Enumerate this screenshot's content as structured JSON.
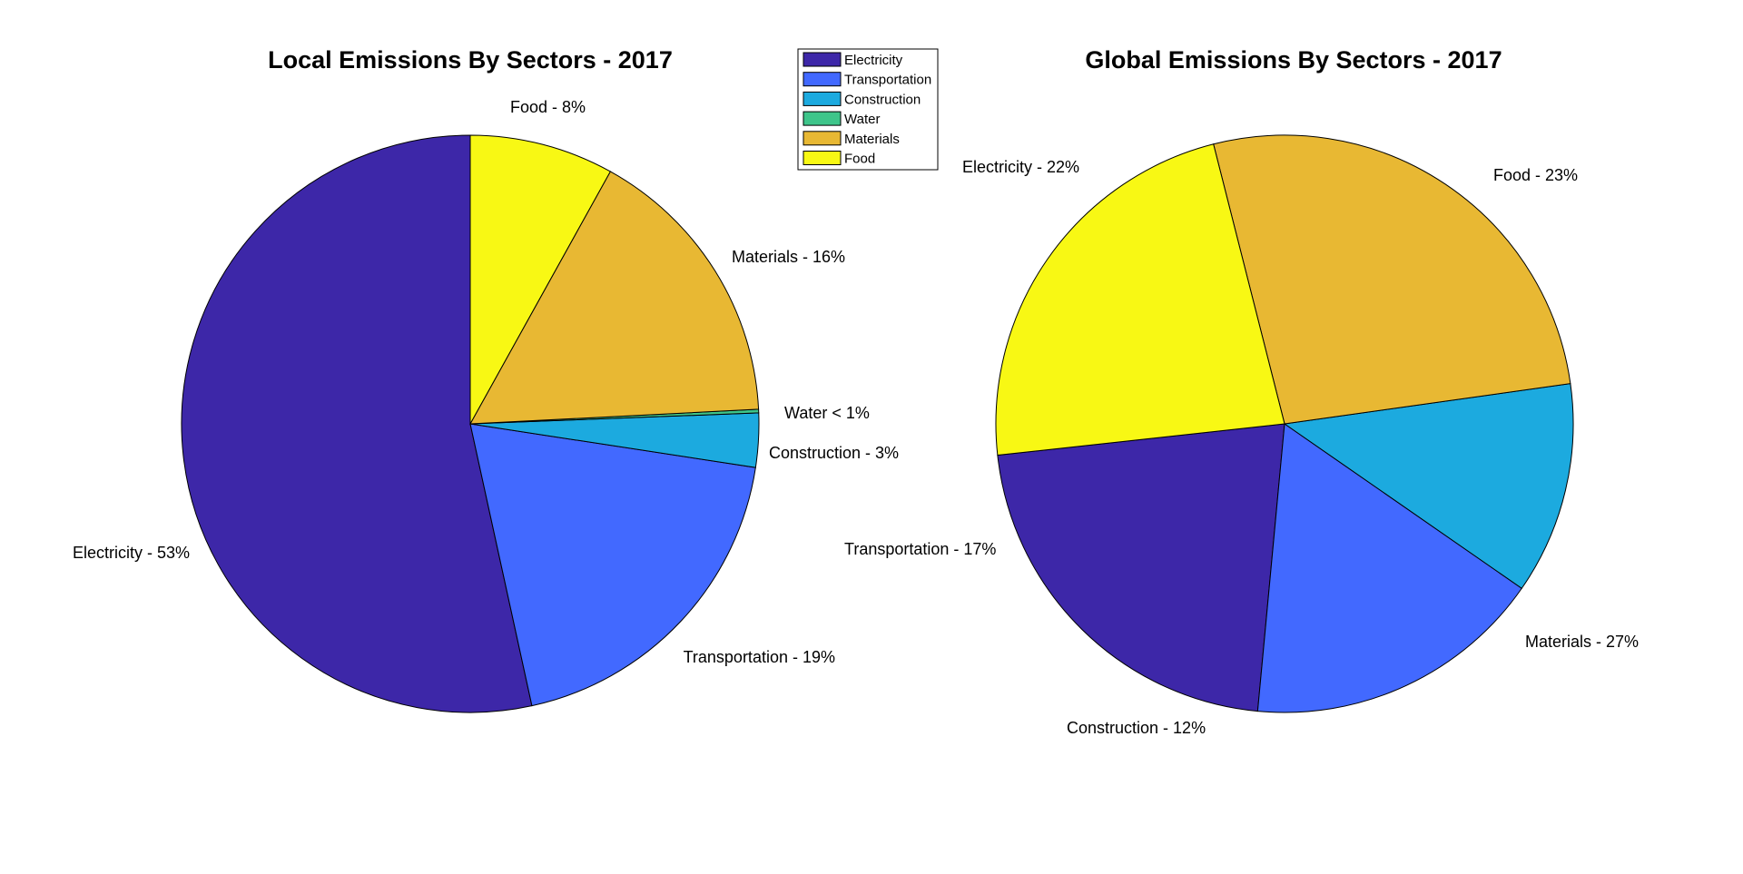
{
  "legend": {
    "entries": [
      {
        "label": "Electricity",
        "color": "#3d27a8"
      },
      {
        "label": "Transportation",
        "color": "#4269ff"
      },
      {
        "label": "Construction",
        "color": "#1caadf"
      },
      {
        "label": "Water",
        "color": "#3ec58a"
      },
      {
        "label": "Materials",
        "color": "#e8b833"
      },
      {
        "label": "Food",
        "color": "#f8f814"
      }
    ]
  },
  "chart_data": [
    {
      "type": "pie",
      "title": "Local Emissions By Sectors - 2017",
      "slices": [
        {
          "name": "Electricity",
          "value": 53,
          "label": "Electricity - 53%",
          "color": "#3d27a8"
        },
        {
          "name": "Transportation",
          "value": 19,
          "label": "Transportation - 19%",
          "color": "#4269ff"
        },
        {
          "name": "Construction",
          "value": 3,
          "label": "Construction - 3%",
          "color": "#1caadf"
        },
        {
          "name": "Water",
          "value": 0.2,
          "label": "Water < 1%",
          "color": "#3ec58a"
        },
        {
          "name": "Materials",
          "value": 16,
          "label": "Materials - 16%",
          "color": "#e8b833"
        },
        {
          "name": "Food",
          "value": 8,
          "label": "Food - 8%",
          "color": "#f8f814"
        }
      ]
    },
    {
      "type": "pie",
      "title": "Global Emissions By Sectors - 2017",
      "slices": [
        {
          "name": "Electricity",
          "value": 22,
          "label": "Electricity - 22%",
          "color": "#3d27a8"
        },
        {
          "name": "Transportation",
          "value": 17,
          "label": "Transportation - 17%",
          "color": "#4269ff"
        },
        {
          "name": "Construction",
          "value": 12,
          "label": "Construction - 12%",
          "color": "#1caadf"
        },
        {
          "name": "Materials",
          "value": 27,
          "label": "Materials - 27%",
          "color": "#e8b833"
        },
        {
          "name": "Food",
          "value": 23,
          "label": "Food - 23%",
          "color": "#f8f814"
        }
      ]
    }
  ]
}
